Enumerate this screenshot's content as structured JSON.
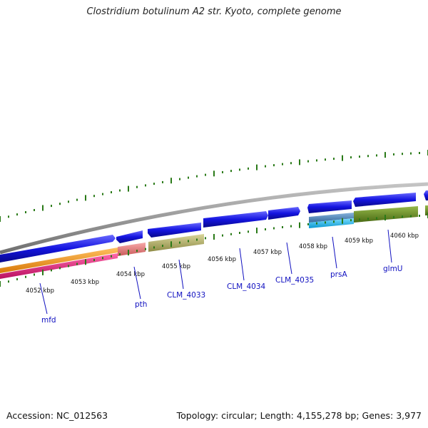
{
  "title": "Clostridium botulinum A2 str. Kyoto, complete genome",
  "accession": "Accession: NC_012563",
  "topology": "Topology: circular; Length: 4,155,278 bp; Genes: 3,977",
  "colors": {
    "backbone": "#8a8a8a",
    "cds": "#1414e0",
    "tick": "#2a7a18",
    "orange": "#f39a1a",
    "magenta": "#e8207e",
    "salmon": "#e97d7d",
    "khaki": "#b8b56e",
    "olive": "#6b8e23",
    "steel": "#4f86b8",
    "cyan": "#1ebff0",
    "label": "#1010c0"
  },
  "kbp_labels": [
    "4052 kbp",
    "4053 kbp",
    "4054 kbp",
    "4055 kbp",
    "4056 kbp",
    "4057 kbp",
    "4058 kbp",
    "4059 kbp",
    "4060 kbp"
  ],
  "genes": [
    "mfd",
    "pth",
    "CLM_4033",
    "CLM_4034",
    "CLM_4035",
    "prsA",
    "glmU"
  ]
}
